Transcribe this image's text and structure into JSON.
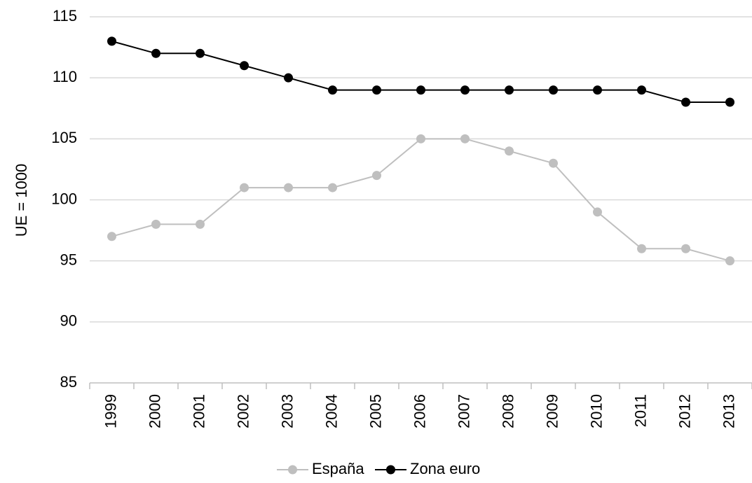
{
  "chart_data": {
    "type": "line",
    "y_label": "UE = 1000",
    "categories": [
      "1999",
      "2000",
      "2001",
      "2002",
      "2003",
      "2004",
      "2005",
      "2006",
      "2007",
      "2008",
      "2009",
      "2010",
      "2011",
      "2012",
      "2013"
    ],
    "series": [
      {
        "name": "España",
        "color": "#bfbfbf",
        "values": [
          97,
          98,
          98,
          101,
          101,
          101,
          102,
          105,
          105,
          104,
          103,
          99,
          96,
          96,
          95
        ]
      },
      {
        "name": "Zona euro",
        "color": "#000000",
        "values": [
          113,
          112,
          112,
          111,
          110,
          109,
          109,
          109,
          109,
          109,
          109,
          109,
          109,
          108,
          108
        ]
      }
    ],
    "ylim": [
      85,
      115
    ],
    "yticks": [
      85,
      90,
      95,
      100,
      105,
      110,
      115
    ],
    "grid": true,
    "legend": "bottom"
  }
}
